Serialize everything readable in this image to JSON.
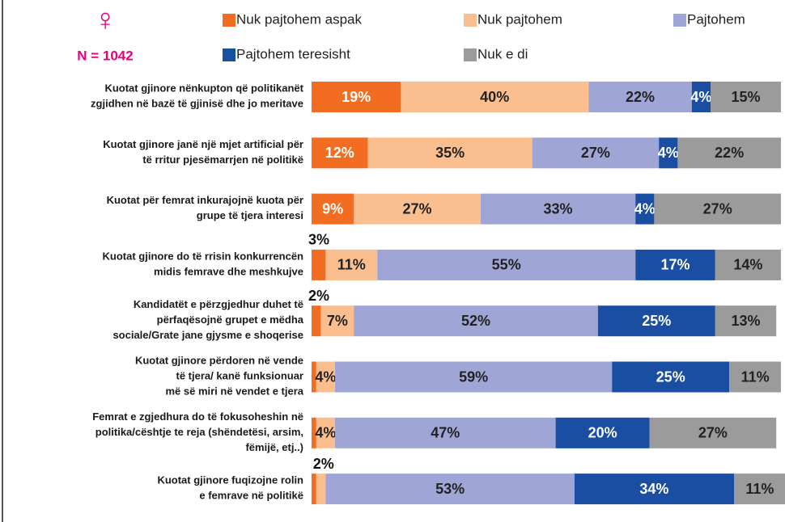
{
  "chart_data": {
    "type": "stacked-bar",
    "orientation": "horizontal",
    "annotations": {
      "symbol": "♀",
      "sample": "N = 1042"
    },
    "categories": [
      [
        "Kuotat gjinore nënkupton që politikanët",
        "zgjidhen në bazë të gjinisë dhe jo meritave"
      ],
      [
        "Kuotat gjinore janë një mjet artificial për",
        "të rritur pjesëmarrjen në politikë"
      ],
      [
        "Kuotat për femrat inkurajojnë kuota për",
        "grupe të tjera interesi"
      ],
      [
        "Kuotat gjinore do të rrisin konkurrencën",
        "midis femrave dhe meshkujve"
      ],
      [
        "Kandidatët e përzgjedhur duhet të",
        "përfaqësojnë grupet e mëdha",
        "sociale/Grate jane gjysme e shoqerise"
      ],
      [
        "Kuotat gjinore përdoren në vende",
        "të tjera/ kanë funksionuar",
        "më së miri në vendet e tjera"
      ],
      [
        "Femrat e zgjedhura do të fokusoheshin në",
        "politika/cështje te reja (shëndetësi, arsim,",
        "fëmijë, etj..)"
      ],
      [
        "Kuotat gjinore fuqizojne rolin",
        "e femrave në politikë"
      ]
    ],
    "xlim": [
      0,
      100
    ],
    "series": [
      {
        "name": "Nuk pajtohem aspak",
        "color": "#f26d21",
        "values": [
          19,
          12,
          9,
          3,
          2,
          1,
          1,
          1
        ],
        "value_labels": [
          "19%",
          "12%",
          "9%",
          "3%",
          "2%",
          null,
          null,
          null
        ]
      },
      {
        "name": "Nuk pajtohem",
        "color": "#fbbf8f",
        "values": [
          40,
          35,
          27,
          11,
          7,
          4,
          4,
          2
        ],
        "value_labels": [
          "40%",
          "35%",
          "27%",
          "11%",
          "7%",
          "4%",
          "4%",
          "2%"
        ]
      },
      {
        "name": "Pajtohem",
        "color": "#9fa6d6",
        "values": [
          22,
          27,
          33,
          55,
          52,
          59,
          47,
          53
        ],
        "value_labels": [
          "22%",
          "27%",
          "33%",
          "55%",
          "52%",
          "59%",
          "47%",
          "53%"
        ]
      },
      {
        "name": "Pajtohem teresisht",
        "color": "#1a4ea2",
        "values": [
          4,
          4,
          4,
          17,
          25,
          25,
          20,
          34
        ],
        "value_labels": [
          "4%",
          "4%",
          "4%",
          "17%",
          "25%",
          "25%",
          "20%",
          "34%"
        ]
      },
      {
        "name": "Nuk e di",
        "color": "#9b9b9b",
        "values": [
          15,
          22,
          27,
          14,
          13,
          11,
          27,
          11
        ],
        "value_labels": [
          "15%",
          "22%",
          "27%",
          "14%",
          "13%",
          "11%",
          "27%",
          "11%"
        ]
      }
    ]
  }
}
